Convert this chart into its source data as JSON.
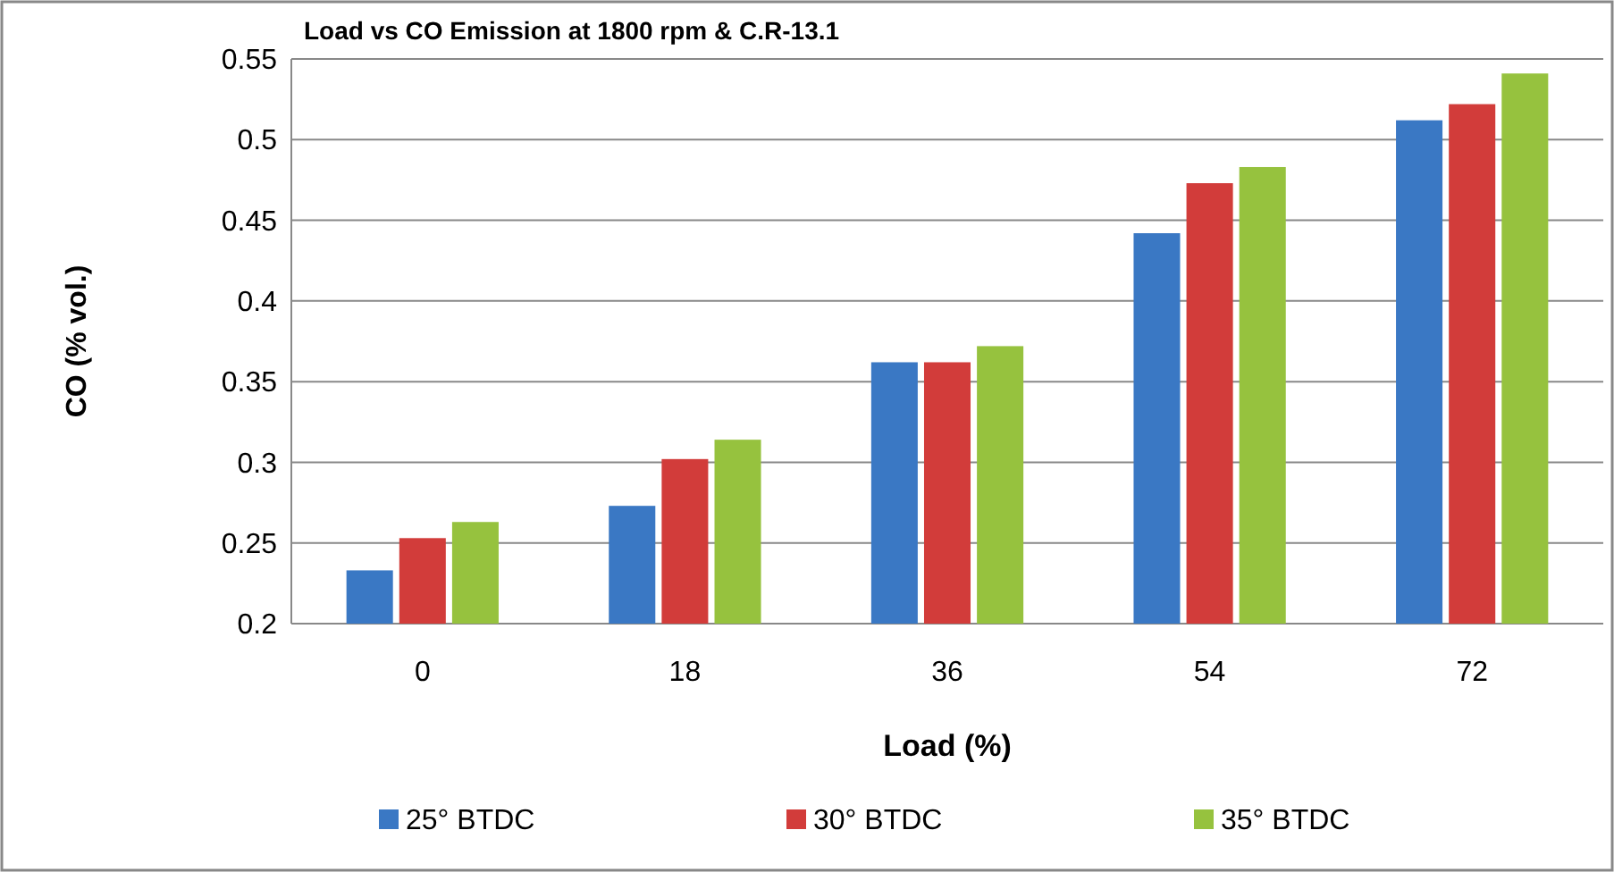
{
  "chart_data": {
    "type": "bar",
    "title": "Load vs CO Emission at 1800 rpm  & C.R-13.1",
    "xlabel": "Load (%)",
    "ylabel": "CO (% vol.)",
    "categories": [
      "0",
      "18",
      "36",
      "54",
      "72"
    ],
    "series": [
      {
        "name": "25° BTDC",
        "color": "#3a78c4",
        "values": [
          0.233,
          0.273,
          0.362,
          0.442,
          0.512
        ]
      },
      {
        "name": "30° BTDC",
        "color": "#d23c3a",
        "values": [
          0.253,
          0.302,
          0.362,
          0.473,
          0.522
        ]
      },
      {
        "name": "35° BTDC",
        "color": "#96c23e",
        "values": [
          0.263,
          0.314,
          0.372,
          0.483,
          0.541
        ]
      }
    ],
    "ylim": [
      0.2,
      0.55
    ],
    "yticks": [
      0.2,
      0.25,
      0.3,
      0.35,
      0.4,
      0.45,
      0.5,
      0.55
    ],
    "grid": "y",
    "legend": "bottom"
  }
}
